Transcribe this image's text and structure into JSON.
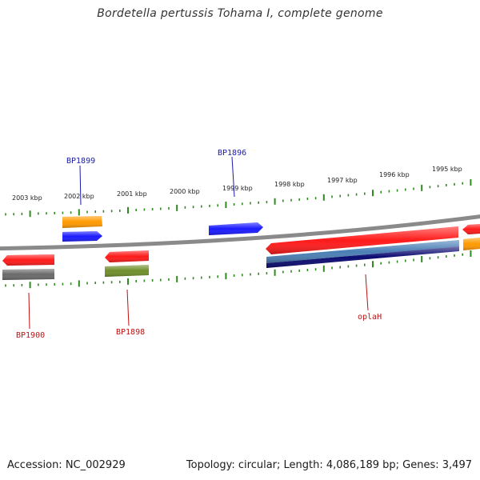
{
  "title": "Bordetella pertussis Tohama I, complete genome",
  "footer": {
    "accession": "Accession: NC_002929",
    "topology": "Topology: circular; Length: 4,086,189 bp; Genes: 3,497"
  },
  "colors": {
    "backbone": "#8a8a8a",
    "tick": "#2e8b1e",
    "tick_label": "#222222",
    "label_blue": "#1a1aaa",
    "label_red": "#c01010"
  },
  "ruler": {
    "labels": [
      "2003 kbp",
      "2002 kbp",
      "2001 kbp",
      "2000 kbp",
      "1999 kbp",
      "1998 kbp",
      "1997 kbp",
      "1996 kbp",
      "1995 kbp"
    ]
  },
  "features": [
    {
      "id": "top-orange",
      "color": "#ff9900",
      "strand": "plus",
      "lane": "outer-2",
      "arrow": "none"
    },
    {
      "id": "top-blue-left",
      "color": "#1a1aff",
      "strand": "plus",
      "lane": "outer-1",
      "arrow": "right"
    },
    {
      "id": "top-blue-right",
      "color": "#1a1aff",
      "strand": "plus",
      "lane": "outer-1",
      "arrow": "right"
    },
    {
      "id": "bot-red-left",
      "color": "#ff1a1a",
      "strand": "minus",
      "lane": "inner-1",
      "arrow": "left"
    },
    {
      "id": "bot-gray-left",
      "color": "#6a6a6a",
      "strand": "minus",
      "lane": "inner-2",
      "arrow": "none"
    },
    {
      "id": "bot-red-mid",
      "color": "#ff1a1a",
      "strand": "minus",
      "lane": "inner-1",
      "arrow": "left"
    },
    {
      "id": "bot-olive",
      "color": "#6f8f2a",
      "strand": "minus",
      "lane": "inner-2",
      "arrow": "none"
    },
    {
      "id": "oplaH-red",
      "color": "#ff1a1a",
      "strand": "minus",
      "lane": "inner-1",
      "arrow": "left"
    },
    {
      "id": "oplaH-steel",
      "color": "#4a7fb5",
      "strand": "minus",
      "lane": "inner-2",
      "arrow": "none"
    },
    {
      "id": "oplaH-navy",
      "color": "#0a0a70",
      "strand": "minus",
      "lane": "inner-3",
      "arrow": "none"
    },
    {
      "id": "edge-red",
      "color": "#ff1a1a",
      "strand": "minus",
      "lane": "inner-1",
      "arrow": "left"
    },
    {
      "id": "edge-orange",
      "color": "#ff9900",
      "strand": "minus",
      "lane": "inner-2",
      "arrow": "none"
    }
  ],
  "gene_labels": [
    {
      "text": "BP1899",
      "color": "blue"
    },
    {
      "text": "BP1896",
      "color": "blue"
    },
    {
      "text": "BP1900",
      "color": "red"
    },
    {
      "text": "BP1898",
      "color": "red"
    },
    {
      "text": "oplaH",
      "color": "red"
    }
  ]
}
